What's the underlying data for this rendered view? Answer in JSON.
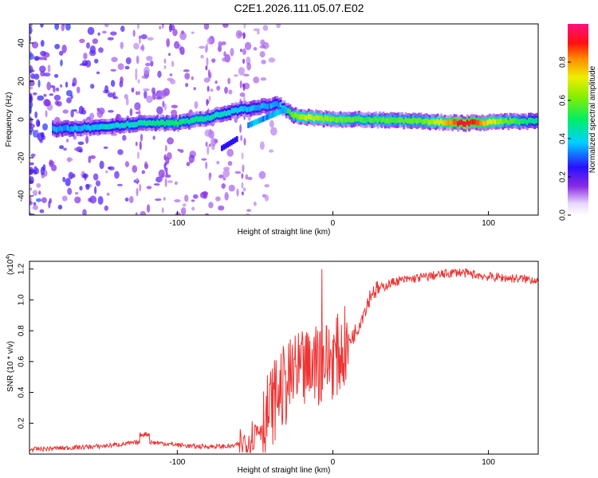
{
  "title": "C2E1.2026.111.05.07.E02",
  "chart_data": [
    {
      "type": "heatmap",
      "xlabel": "Height of straight line (km)",
      "ylabel": "Frequency (Hz)",
      "xlim": [
        -195,
        132
      ],
      "ylim": [
        -50,
        50
      ],
      "x_ticks": [
        -100,
        0,
        100
      ],
      "x_tick_labels": [
        "-100",
        "0",
        "100"
      ],
      "y_ticks": [
        -40,
        -20,
        0,
        20,
        40
      ],
      "y_tick_labels": [
        "-40",
        "-20",
        "0",
        "20",
        "40"
      ],
      "colorbar": {
        "label": "Normalized spectral amplitude",
        "range": [
          0,
          1
        ],
        "ticks": [
          0.0,
          0.2,
          0.4,
          0.6,
          0.8
        ],
        "tick_labels": [
          "0.0",
          "0.2",
          "0.4",
          "0.6",
          "0.8"
        ]
      },
      "ridge": {
        "x": [
          -195,
          -175,
          -150,
          -125,
          -100,
          -80,
          -60,
          -45,
          -35,
          -25,
          -15,
          0,
          20,
          60,
          85,
          110,
          132
        ],
        "freq_hz": [
          -4,
          -5,
          -4,
          -2,
          -2,
          1,
          5,
          7,
          8,
          2,
          1,
          0,
          0,
          -1,
          -2,
          -1,
          -1
        ],
        "amplitude": [
          0.3,
          0.35,
          0.4,
          0.45,
          0.5,
          0.45,
          0.4,
          0.35,
          0.35,
          0.6,
          0.7,
          0.6,
          0.55,
          0.6,
          0.95,
          0.6,
          0.45
        ]
      }
    },
    {
      "type": "line",
      "xlabel": "Height of straight line (km)",
      "ylabel": "SNR (10 * v/v)",
      "scale_label": "(x10",
      "scale_exponent": "4",
      "xlim": [
        -195,
        132
      ],
      "ylim": [
        0,
        1.25
      ],
      "x_ticks": [
        -100,
        0,
        100
      ],
      "x_tick_labels": [
        "-100",
        "0",
        "100"
      ],
      "y_ticks": [
        0.2,
        0.4,
        0.6,
        0.8,
        1.0,
        1.2
      ],
      "y_tick_labels": [
        "0.2",
        "0.4",
        "0.6",
        "0.8",
        "1.0",
        "1.2"
      ],
      "color": "#ee3333",
      "trend": {
        "x": [
          -195,
          -150,
          -120,
          -90,
          -65,
          -55,
          -45,
          -35,
          -25,
          -15,
          -5,
          5,
          15,
          25,
          40,
          60,
          80,
          100,
          115,
          132
        ],
        "y": [
          0.03,
          0.05,
          0.08,
          0.05,
          0.05,
          0.08,
          0.2,
          0.4,
          0.5,
          0.55,
          0.6,
          0.65,
          0.8,
          1.05,
          1.12,
          1.15,
          1.18,
          1.15,
          1.14,
          1.13
        ]
      }
    }
  ]
}
